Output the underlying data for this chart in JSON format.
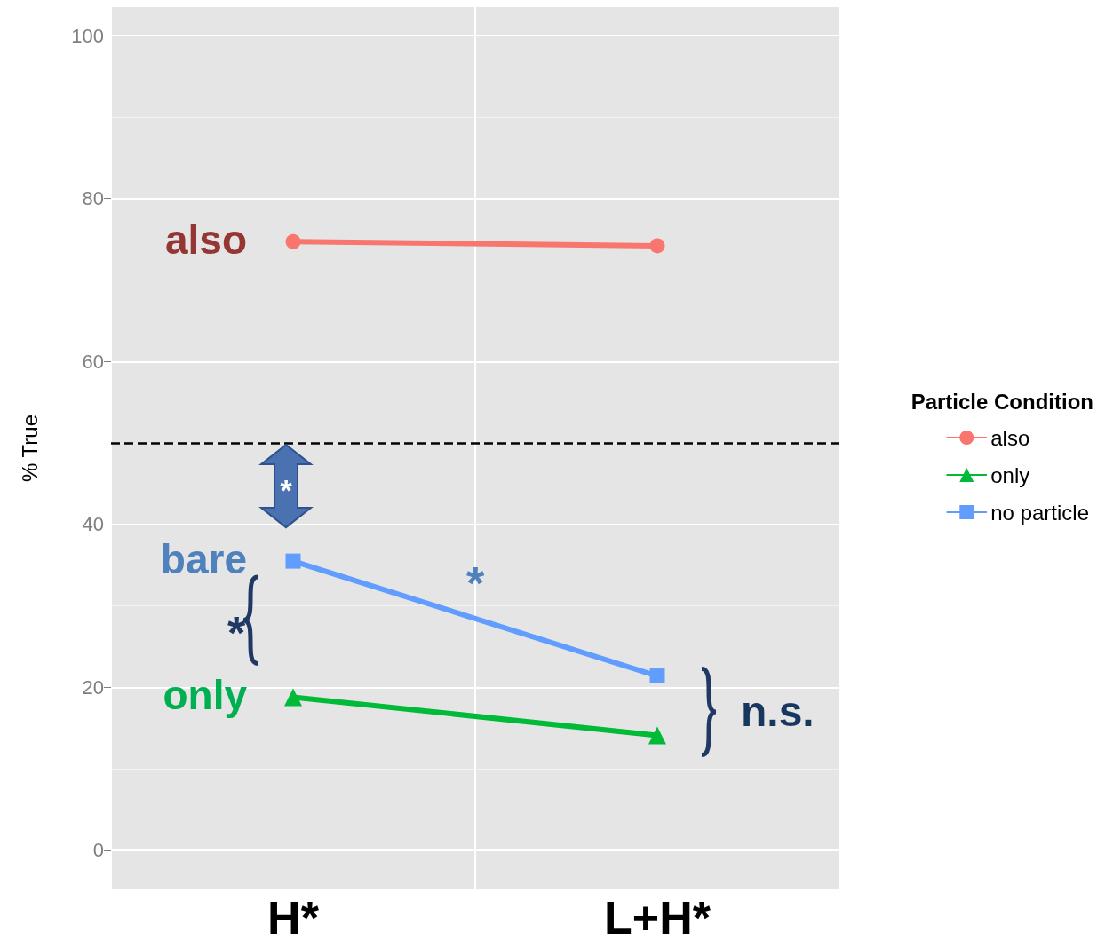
{
  "chart_data": {
    "type": "line",
    "ylabel": "% True",
    "categories": [
      "H*",
      "L+H*"
    ],
    "series": [
      {
        "name": "also",
        "color": "#f8766d",
        "marker": "circle",
        "values": [
          74.7,
          74.2
        ]
      },
      {
        "name": "only",
        "color": "#00ba38",
        "marker": "triangle",
        "values": [
          18.8,
          14.1
        ]
      },
      {
        "name": "no particle",
        "color": "#619cff",
        "marker": "square",
        "values": [
          35.5,
          21.4
        ]
      }
    ],
    "ylim": [
      -4.8,
      103.5
    ],
    "yticks": [
      0,
      20,
      40,
      60,
      80,
      100
    ],
    "grid": true,
    "legend": "right",
    "legend_title": "Particle Condition",
    "ref_lines": [
      {
        "axis": "y",
        "value": 50,
        "color": "#000000",
        "line_style": "dashed"
      }
    ],
    "annotations": [
      {
        "text": "also",
        "x": "H*",
        "y": 74.7
      },
      {
        "text": "bare",
        "x": "H*",
        "y": 35.5
      },
      {
        "text": "only",
        "x": "H*",
        "y": 18.8
      },
      "*",
      "*",
      "*",
      "n.s."
    ]
  }
}
